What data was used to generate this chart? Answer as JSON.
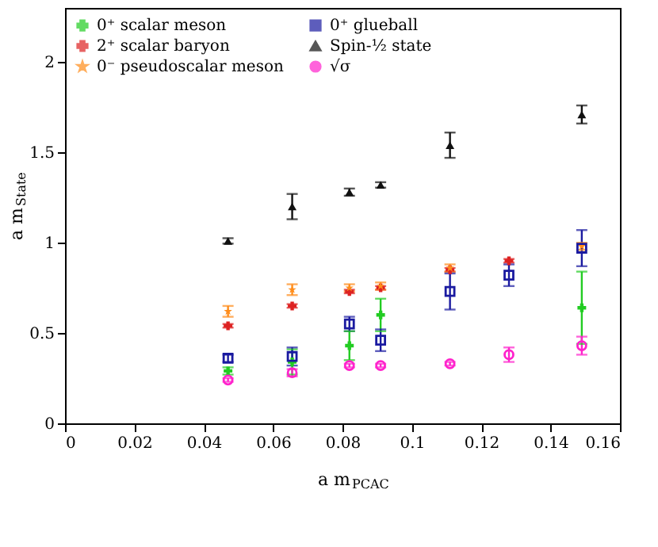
{
  "chart_data": {
    "type": "scatter",
    "xlabel": "a m$_{PCAC}$",
    "ylabel": "a m$_{State}$",
    "xlim": [
      0,
      0.16
    ],
    "xticks": [
      0,
      0.02,
      0.04,
      0.06,
      0.08,
      0.1,
      0.12,
      0.14,
      0.16
    ],
    "ylim": [
      0,
      2.3
    ],
    "yticks": [
      0,
      0.5,
      1,
      1.5,
      2
    ],
    "grid": false,
    "legend": "top left",
    "series": [
      {
        "name": "0⁺ scalar meson",
        "color": "#22cc22",
        "marker": "cross",
        "x": [
          0.047,
          0.0655,
          0.082,
          0.091,
          0.149
        ],
        "values": [
          0.29,
          0.34,
          0.43,
          0.6,
          0.64
        ],
        "errors": [
          0.02,
          0.07,
          0.08,
          0.09,
          0.2
        ]
      },
      {
        "name": "2⁺ scalar baryon",
        "color": "#dd2222",
        "marker": "cross",
        "x": [
          0.047,
          0.0655,
          0.082,
          0.091,
          0.111,
          0.128
        ],
        "values": [
          0.54,
          0.65,
          0.73,
          0.75,
          0.85,
          0.9
        ],
        "errors": [
          0.01,
          0.01,
          0.01,
          0.01,
          0.01,
          0.01
        ]
      },
      {
        "name": "0⁻ pseudoscalar meson",
        "color": "#ff8c1a",
        "marker": "star",
        "x": [
          0.047,
          0.0655,
          0.082,
          0.091,
          0.111,
          0.149
        ],
        "values": [
          0.62,
          0.74,
          0.75,
          0.76,
          0.86,
          0.98
        ],
        "errors": [
          0.03,
          0.03,
          0.02,
          0.02,
          0.02,
          0.02
        ]
      },
      {
        "name": "0⁺ glueball",
        "color": "#1a1aa0",
        "marker": "square",
        "x": [
          0.047,
          0.0655,
          0.082,
          0.091,
          0.111,
          0.128,
          0.149
        ],
        "values": [
          0.36,
          0.37,
          0.55,
          0.46,
          0.73,
          0.82,
          0.97
        ],
        "errors": [
          0.02,
          0.05,
          0.04,
          0.06,
          0.1,
          0.06,
          0.1
        ]
      },
      {
        "name": "Spin-½ state",
        "color": "#111111",
        "marker": "triangle",
        "x": [
          0.047,
          0.0655,
          0.082,
          0.091,
          0.111,
          0.149
        ],
        "values": [
          1.01,
          1.2,
          1.28,
          1.32,
          1.54,
          1.71
        ],
        "errors": [
          0.015,
          0.07,
          0.02,
          0.015,
          0.07,
          0.05
        ]
      },
      {
        "name": "√σ",
        "color": "#ff22cc",
        "marker": "circle",
        "x": [
          0.047,
          0.0655,
          0.082,
          0.091,
          0.111,
          0.128,
          0.149
        ],
        "values": [
          0.24,
          0.28,
          0.32,
          0.32,
          0.33,
          0.38,
          0.43
        ],
        "errors": [
          0.01,
          0.02,
          0.01,
          0.01,
          0.01,
          0.04,
          0.05
        ]
      }
    ]
  }
}
